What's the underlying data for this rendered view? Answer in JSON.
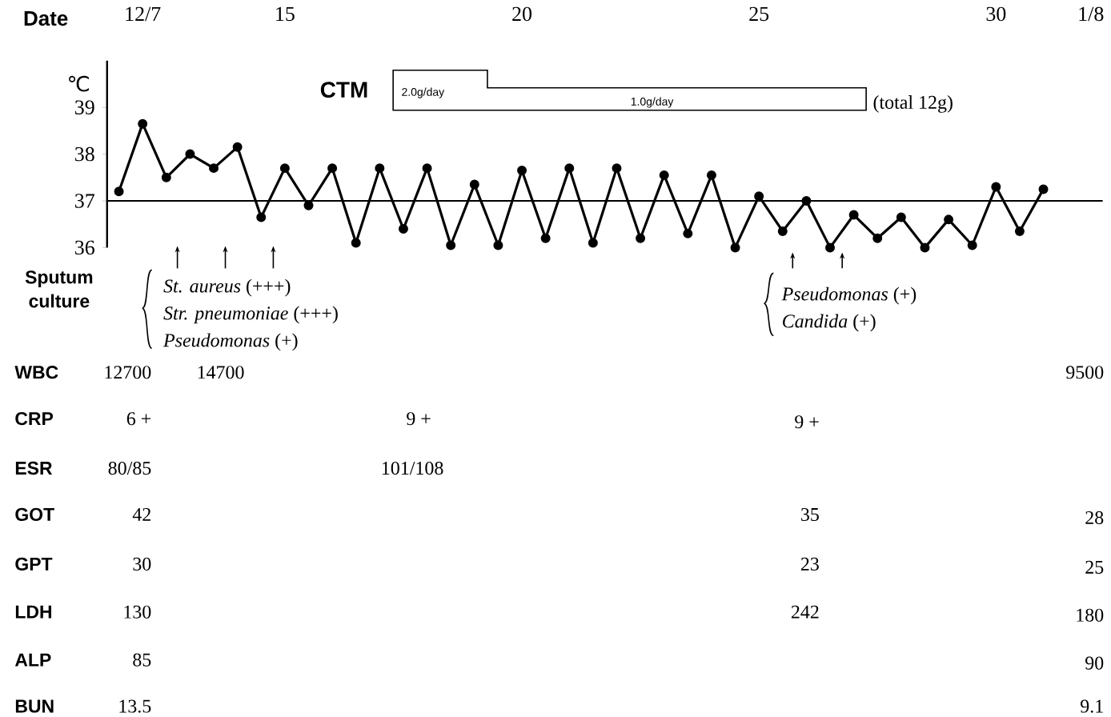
{
  "chart_data": {
    "type": "line",
    "xlabel": "Date",
    "ylabel": "℃",
    "categories": [
      null,
      "12/7",
      null,
      null,
      null,
      null,
      null,
      "15",
      null,
      null,
      null,
      null,
      null,
      null,
      null,
      null,
      null,
      "20",
      null,
      null,
      null,
      null,
      null,
      null,
      null,
      null,
      null,
      "25",
      null,
      null,
      null,
      null,
      null,
      null,
      null,
      null,
      null,
      "30",
      null,
      null,
      null,
      "1/8"
    ],
    "values": [
      37.2,
      38.65,
      37.5,
      38.0,
      37.7,
      38.15,
      36.65,
      37.7,
      36.9,
      37.7,
      36.1,
      37.7,
      36.4,
      37.7,
      36.05,
      37.35,
      36.05,
      37.65,
      36.2,
      37.7,
      36.1,
      37.7,
      36.2,
      37.55,
      36.3,
      37.55,
      36.0,
      37.1,
      36.35,
      37.0,
      36.0,
      36.7,
      36.2,
      36.65,
      36.0,
      36.6,
      36.05,
      37.3,
      36.35,
      37.25,
      null,
      null
    ],
    "color": "#000000",
    "marker": "circle",
    "line_style": "solid",
    "grid": false,
    "ylim": [
      36,
      40
    ],
    "yticks": [
      36,
      37,
      38,
      39
    ],
    "ref_lines": [
      {
        "axis": "y",
        "value": 37,
        "color": "#000000"
      }
    ],
    "annotations": [
      "CTM",
      "2.0g/day",
      "1.0g/day",
      "(total 12g)",
      "Sputum culture",
      "*St. aureus* (+++)",
      "*Str. pneumoniae* (+++)",
      "*Pseudomonas* (+)",
      "*Pseudomonas* (+)",
      "*Candida* (+)",
      "WBC",
      "12700",
      "14700",
      "9500",
      "CRP",
      "6 +",
      "9 +",
      "9 +",
      "ESR",
      "80/85",
      "101/108",
      "GOT",
      "42",
      "35",
      "28",
      "GPT",
      "30",
      "23",
      "25",
      "LDH",
      "130",
      "242",
      "180",
      "ALP",
      "85",
      "90",
      "BUN",
      "13.5",
      "9.1"
    ]
  }
}
